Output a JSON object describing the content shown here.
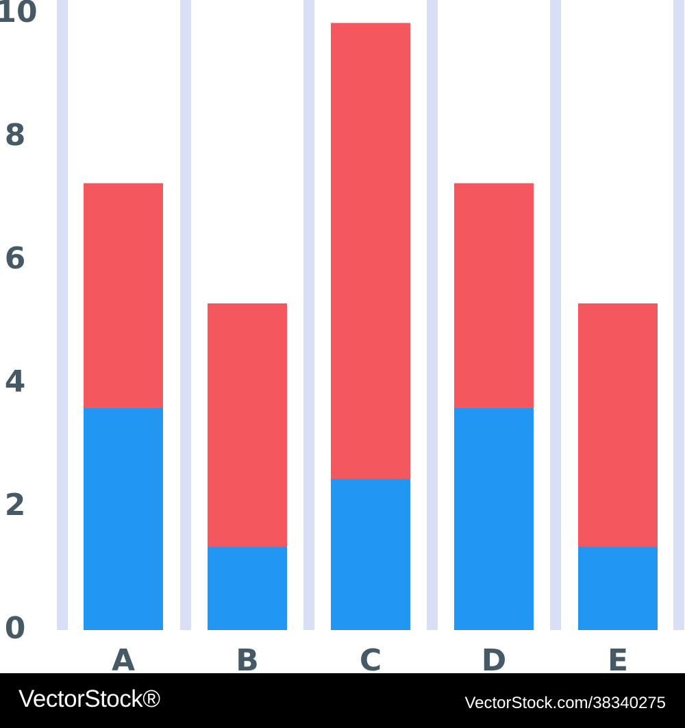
{
  "chart_data": {
    "type": "bar",
    "stacked": true,
    "categories": [
      "A",
      "B",
      "C",
      "D",
      "E"
    ],
    "series": [
      {
        "values": [
          3.6,
          1.35,
          2.45,
          3.6,
          1.35
        ],
        "color": "#2196f3"
      },
      {
        "values": [
          3.65,
          3.95,
          7.4,
          3.65,
          3.95
        ],
        "color": "#f4575d"
      }
    ],
    "yticks": [
      0,
      2,
      4,
      6,
      8,
      10
    ],
    "ylim": [
      0,
      10.35
    ],
    "grid": "vertical",
    "grid_color": "#dadff8",
    "label_color": "#455a64",
    "title": "",
    "xlabel": "",
    "ylabel": ""
  },
  "watermark": {
    "brand": "VectorStock®",
    "url": "VectorStock.com/38340275"
  }
}
